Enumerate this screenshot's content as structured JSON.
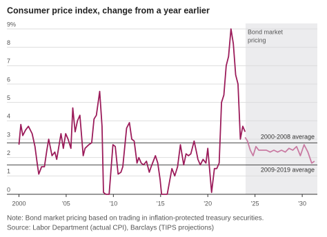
{
  "chart_data": {
    "type": "line",
    "title": "Consumer price index, change from a year earlier",
    "notes": [
      "Note: Bond market pricing based on trading in inflation-protected treasury securities.",
      "Source: Labor Department (actual CPI), Barclays (TIPS projections)"
    ],
    "xlim": [
      1999.6,
      2031.6
    ],
    "ylim": [
      0,
      9
    ],
    "yticks": [
      0,
      1,
      2,
      3,
      4,
      5,
      6,
      7,
      8,
      {
        "value": 9,
        "label": "9%"
      }
    ],
    "xticks": [
      2000,
      {
        "value": 2005,
        "label": "'05"
      },
      {
        "value": 2010,
        "label": "'10"
      },
      {
        "value": 2015,
        "label": "'15"
      },
      {
        "value": 2020,
        "label": "'20"
      },
      {
        "value": 2025,
        "label": "'25"
      },
      {
        "value": 2030,
        "label": "'30"
      }
    ],
    "grid": true,
    "shaded_region": {
      "start": 2024.0,
      "end": 2031.6,
      "label": [
        "Bond market",
        "pricing"
      ],
      "color": "#ececee"
    },
    "reference_lines": [
      {
        "label": "2000-2008 average",
        "value": 2.8,
        "label_position": "above"
      },
      {
        "label": "2009-2019 average",
        "value": 1.6,
        "label_position": "below"
      }
    ],
    "series": [
      {
        "name": "Actual CPI",
        "color": "#9b1b5a",
        "x": [
          2000.0,
          2000.2,
          2000.4,
          2000.7,
          2001.0,
          2001.4,
          2001.7,
          2001.95,
          2002.1,
          2002.4,
          2002.7,
          2002.95,
          2003.15,
          2003.5,
          2003.8,
          2004.0,
          2004.45,
          2004.7,
          2004.95,
          2005.2,
          2005.5,
          2005.7,
          2005.95,
          2006.2,
          2006.45,
          2006.8,
          2007.0,
          2007.4,
          2007.7,
          2007.95,
          2008.2,
          2008.55,
          2008.8,
          2008.95,
          2009.2,
          2009.55,
          2009.95,
          2010.2,
          2010.5,
          2010.8,
          2011.0,
          2011.4,
          2011.7,
          2011.95,
          2012.2,
          2012.5,
          2012.7,
          2012.95,
          2013.2,
          2013.5,
          2013.8,
          2014.0,
          2014.45,
          2014.7,
          2014.95,
          2015.1,
          2015.4,
          2015.7,
          2015.95,
          2016.2,
          2016.5,
          2016.8,
          2017.1,
          2017.45,
          2017.7,
          2017.95,
          2018.2,
          2018.55,
          2018.8,
          2018.95,
          2019.2,
          2019.5,
          2019.8,
          2020.0,
          2020.4,
          2020.7,
          2020.95,
          2021.2,
          2021.45,
          2021.7,
          2021.95,
          2022.2,
          2022.45,
          2022.7,
          2022.95,
          2023.2,
          2023.45,
          2023.7,
          2023.95
        ],
        "values": [
          2.7,
          3.8,
          3.2,
          3.5,
          3.7,
          3.3,
          2.6,
          1.6,
          1.1,
          1.5,
          1.5,
          2.4,
          3.0,
          2.1,
          2.3,
          1.9,
          3.3,
          2.5,
          3.3,
          3.0,
          2.5,
          4.7,
          3.4,
          4.0,
          4.3,
          2.1,
          2.5,
          2.7,
          2.8,
          4.1,
          4.3,
          5.6,
          3.7,
          0.1,
          0.0,
          0.0,
          2.7,
          2.6,
          1.1,
          1.2,
          1.5,
          3.6,
          3.9,
          3.0,
          2.9,
          1.7,
          2.0,
          1.7,
          1.6,
          1.8,
          1.2,
          1.5,
          2.1,
          1.7,
          0.8,
          0.0,
          0.0,
          0.0,
          0.7,
          1.4,
          1.0,
          1.5,
          2.7,
          1.6,
          2.2,
          2.1,
          2.2,
          2.9,
          2.3,
          1.9,
          1.6,
          1.9,
          1.7,
          2.5,
          0.1,
          1.4,
          1.4,
          1.7,
          5.0,
          5.4,
          7.0,
          7.5,
          9.0,
          8.2,
          6.5,
          6.0,
          3.0,
          3.7,
          3.4
        ]
      },
      {
        "name": "Bond market pricing",
        "color": "#c97aa2",
        "x": [
          2023.95,
          2024.2,
          2024.5,
          2024.8,
          2025.1,
          2025.4,
          2025.8,
          2026.2,
          2026.6,
          2027.0,
          2027.4,
          2027.8,
          2028.2,
          2028.6,
          2029.0,
          2029.4,
          2029.8,
          2030.2,
          2030.6,
          2031.0,
          2031.3
        ],
        "values": [
          3.1,
          2.9,
          2.4,
          2.1,
          2.6,
          2.4,
          2.4,
          2.4,
          2.3,
          2.4,
          2.3,
          2.4,
          2.3,
          2.5,
          2.4,
          2.6,
          2.1,
          2.7,
          2.3,
          1.7,
          1.8
        ]
      }
    ]
  }
}
